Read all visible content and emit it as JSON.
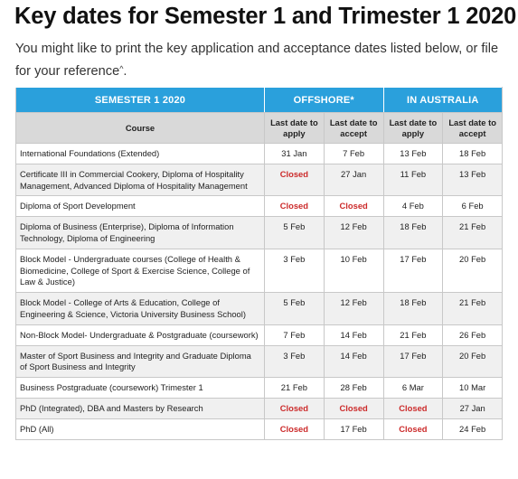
{
  "heading": "Key dates for Semester 1 and Trimester 1 2020",
  "intro": {
    "text": "You might like to print the key application and acceptance dates listed below, or file for your reference",
    "sup": "^",
    "end": "."
  },
  "table": {
    "groups": [
      "SEMESTER 1 2020",
      "OFFSHORE*",
      "IN AUSTRALIA"
    ],
    "course_header": "Course",
    "date_headers": [
      "Last date to apply",
      "Last date to accept",
      "Last date to apply",
      "Last date to accept"
    ],
    "rows": [
      {
        "course": "International Foundations (Extended)",
        "dates": [
          "31 Jan",
          "7 Feb",
          "13 Feb",
          "18 Feb"
        ]
      },
      {
        "course": "Certificate III in Commercial Cookery, Diploma of Hospitality Management, Advanced Diploma of Hospitality Management",
        "dates": [
          "Closed",
          "27 Jan",
          "11 Feb",
          "13 Feb"
        ]
      },
      {
        "course": "Diploma of Sport Development",
        "dates": [
          "Closed",
          "Closed",
          "4 Feb",
          "6 Feb"
        ]
      },
      {
        "course": "Diploma of Business (Enterprise), Diploma of Information Technology, Diploma of Engineering",
        "dates": [
          "5 Feb",
          "12 Feb",
          "18 Feb",
          "21 Feb"
        ]
      },
      {
        "course": "Block Model - Undergraduate courses (College of Health & Biomedicine, College of Sport & Exercise Science, College of Law & Justice)",
        "dates": [
          "3 Feb",
          "10 Feb",
          "17 Feb",
          "20 Feb"
        ]
      },
      {
        "course": "Block Model - College of Arts & Education, College of Engineering & Science, Victoria University Business School)",
        "dates": [
          "5 Feb",
          "12 Feb",
          "18 Feb",
          "21 Feb"
        ]
      },
      {
        "course": "Non-Block Model- Undergraduate & Postgraduate (coursework)",
        "dates": [
          "7 Feb",
          "14 Feb",
          "21 Feb",
          "26 Feb"
        ]
      },
      {
        "course": "Master of Sport Business and Integrity and Graduate Diploma of Sport Business and Integrity",
        "dates": [
          "3 Feb",
          "14 Feb",
          "17 Feb",
          "20 Feb"
        ]
      },
      {
        "course": "Business Postgraduate (coursework) Trimester 1",
        "dates": [
          "21 Feb",
          "28 Feb",
          "6 Mar",
          "10 Mar"
        ]
      },
      {
        "course": "PhD (Integrated), DBA and Masters by Research",
        "dates": [
          "Closed",
          "Closed",
          "Closed",
          "27 Jan"
        ]
      },
      {
        "course": "PhD (All)",
        "dates": [
          "Closed",
          "17 Feb",
          "Closed",
          "24 Feb"
        ]
      }
    ]
  },
  "colors": {
    "band_header": "#2aa0dc",
    "sub_header": "#d9d9d9",
    "alt_row": "#f0f0f0",
    "closed_text": "#cc2b2b"
  }
}
